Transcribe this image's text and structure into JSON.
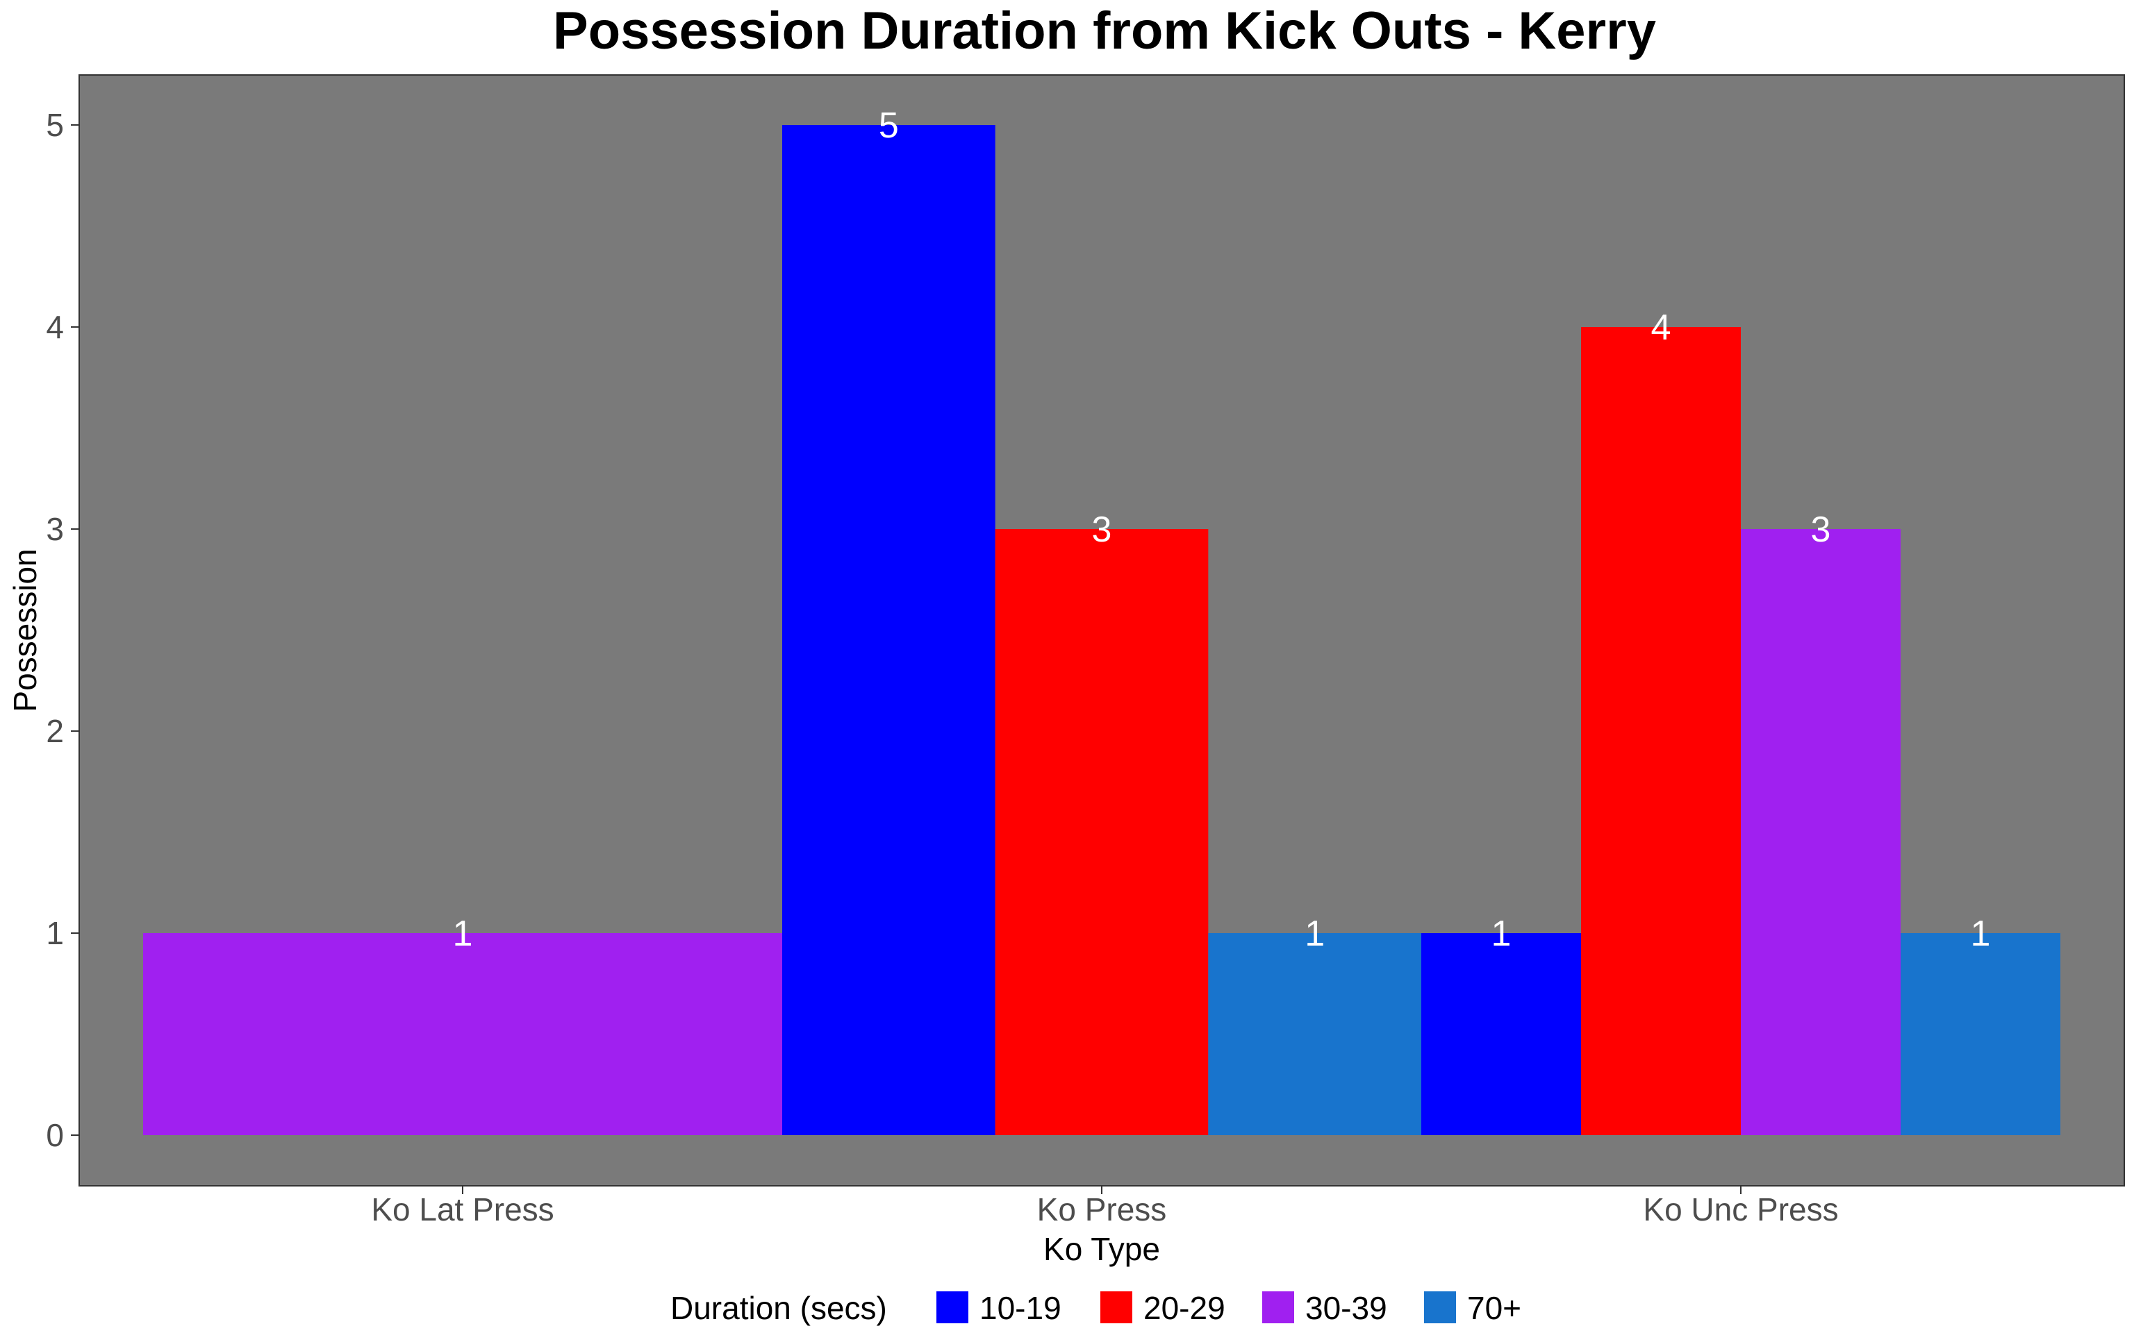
{
  "chart_data": {
    "type": "bar",
    "title": "Possession Duration from Kick Outs - Kerry",
    "xlabel": "Ko Type",
    "ylabel": "Possession",
    "ylim": [
      0,
      5.25
    ],
    "yticks": [
      0,
      1,
      2,
      3,
      4,
      5
    ],
    "categories": [
      "Ko Lat Press",
      "Ko Press",
      "Ko Unc Press"
    ],
    "legend_title": "Duration (secs)",
    "legend_position": "bottom",
    "grid": false,
    "panel_background": "#7a7a7a",
    "series": [
      {
        "name": "10-19",
        "color": "#0000ff",
        "values": [
          null,
          5,
          1
        ]
      },
      {
        "name": "20-29",
        "color": "#ff0000",
        "values": [
          null,
          3,
          4
        ]
      },
      {
        "name": "30-39",
        "color": "#a020f0",
        "values": [
          1,
          null,
          3
        ]
      },
      {
        "name": "70+",
        "color": "#1874cd",
        "values": [
          null,
          1,
          1
        ]
      }
    ]
  }
}
